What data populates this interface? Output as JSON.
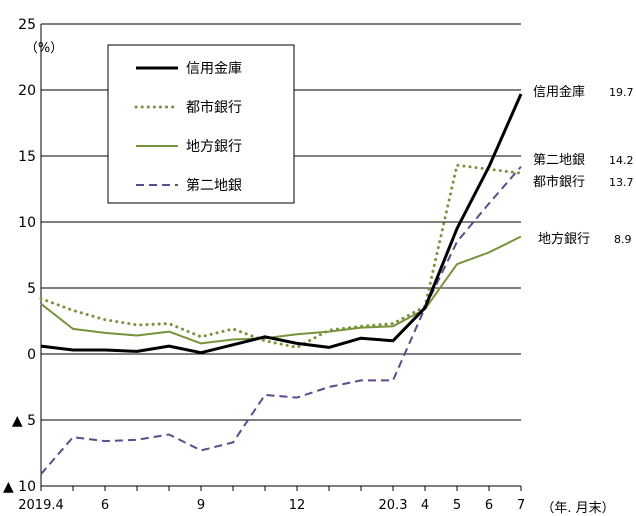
{
  "chart_data": {
    "type": "line",
    "unit_label": "（%）",
    "x_unit_label": "（年. 月末）",
    "x_tick_labels": [
      "2019.4",
      "",
      "6",
      "",
      "",
      "9",
      "",
      "",
      "12",
      "",
      "",
      "20.3",
      "4",
      "5",
      "6",
      "7"
    ],
    "y_ticks": [
      {
        "value": 25,
        "label": "25"
      },
      {
        "value": 20,
        "label": "20"
      },
      {
        "value": 15,
        "label": "15"
      },
      {
        "value": 10,
        "label": "10"
      },
      {
        "value": 5,
        "label": "5"
      },
      {
        "value": 0,
        "label": "0"
      },
      {
        "value": -5,
        "label": "▲ 5"
      },
      {
        "value": -10,
        "label": "▲ 10"
      }
    ],
    "ylim": [
      -10,
      25
    ],
    "grid": true,
    "legend_placement": "top-left",
    "series": [
      {
        "name": "信用金庫",
        "color": "#000000",
        "style": "solid-thick",
        "values": [
          0.6,
          0.3,
          0.3,
          0.2,
          0.6,
          0.1,
          0.7,
          1.3,
          0.8,
          0.5,
          1.2,
          1.0,
          3.5,
          9.5,
          14.2,
          19.7
        ],
        "end_label": "信用金庫",
        "end_value": "19.7"
      },
      {
        "name": "都市銀行",
        "color": "#77933c",
        "style": "dotted",
        "values": [
          4.2,
          3.3,
          2.6,
          2.2,
          2.3,
          1.3,
          1.9,
          1.0,
          0.5,
          1.8,
          2.1,
          2.3,
          3.6,
          14.3,
          14.0,
          13.7
        ],
        "end_label": "都市銀行",
        "end_value": "13.7"
      },
      {
        "name": "地方銀行",
        "color": "#77933c",
        "style": "solid",
        "values": [
          3.8,
          1.9,
          1.6,
          1.4,
          1.7,
          0.8,
          1.1,
          1.2,
          1.5,
          1.7,
          2.0,
          2.1,
          3.4,
          6.8,
          7.7,
          8.9
        ],
        "end_label": "地方銀行",
        "end_value": "8.9"
      },
      {
        "name": "第二地銀",
        "color": "#5f4a8b",
        "style": "dashed",
        "values": [
          -9.1,
          -6.3,
          -6.6,
          -6.5,
          -6.1,
          -7.3,
          -6.7,
          -3.1,
          -3.3,
          -2.5,
          -2.0,
          -2.0,
          3.5,
          8.5,
          11.4,
          14.2
        ],
        "end_label": "第二地銀",
        "end_value": "14.2"
      }
    ]
  }
}
